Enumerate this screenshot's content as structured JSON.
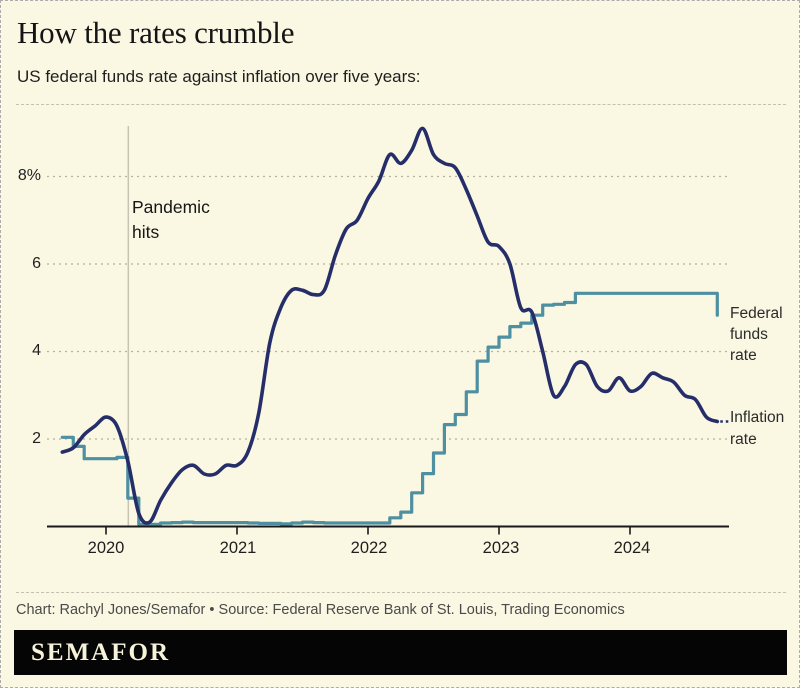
{
  "header": {
    "title": "How the rates crumble",
    "subtitle": "US federal funds rate against inflation over five years:"
  },
  "footer": {
    "credit": "Chart: Rachyl Jones/Semafor • Source: Federal Reserve Bank of St. Louis, Trading Economics",
    "logo": "SEMAFOR"
  },
  "colors": {
    "background": "#FAF7E3",
    "fed_funds_line": "#4E90A1",
    "inflation_line": "#262E6A",
    "gridline": "#B6B09E",
    "axis": "#1A1A1A",
    "annotation_line": "#C8C4B4",
    "logo_bar": "#050505"
  },
  "chart_data": {
    "type": "line",
    "title": "How the rates crumble",
    "subtitle": "US federal funds rate against inflation over five years:",
    "x_start_year": 2019.6667,
    "x_step_years": 0.0833333,
    "xlim": [
      2019.55,
      2024.85
    ],
    "ylim": [
      0,
      9.6
    ],
    "grid": "dashed-horizontal",
    "legend_position": "right-inline",
    "x_ticks": [
      {
        "year": 2020,
        "label": "2020"
      },
      {
        "year": 2021,
        "label": "2021"
      },
      {
        "year": 2022,
        "label": "2022"
      },
      {
        "year": 2023,
        "label": "2023"
      },
      {
        "year": 2024,
        "label": "2024"
      }
    ],
    "y_ticks": [
      {
        "value": 8,
        "label": "8%"
      },
      {
        "value": 6,
        "label": "6"
      },
      {
        "value": 4,
        "label": "4"
      },
      {
        "value": 2,
        "label": "2"
      }
    ],
    "annotation": {
      "label": "Pandemic hits",
      "x": 2020.17
    },
    "series": [
      {
        "name": "Federal funds rate",
        "style": "step",
        "color": "#4E90A1",
        "values": [
          2.04,
          1.83,
          1.55,
          1.55,
          1.55,
          1.58,
          0.65,
          0.05,
          0.05,
          0.08,
          0.09,
          0.1,
          0.09,
          0.09,
          0.09,
          0.09,
          0.09,
          0.08,
          0.07,
          0.07,
          0.06,
          0.08,
          0.1,
          0.09,
          0.08,
          0.08,
          0.08,
          0.08,
          0.08,
          0.08,
          0.2,
          0.33,
          0.77,
          1.21,
          1.68,
          2.33,
          2.56,
          3.08,
          3.78,
          4.1,
          4.33,
          4.57,
          4.65,
          4.83,
          5.06,
          5.08,
          5.12,
          5.33,
          5.33,
          5.33,
          5.33,
          5.33,
          5.33,
          5.33,
          5.33,
          5.33,
          5.33,
          5.33,
          5.33,
          5.33,
          4.83
        ]
      },
      {
        "name": "Inflation rate",
        "style": "smooth",
        "color": "#262E6A",
        "values": [
          1.7,
          1.8,
          2.1,
          2.3,
          2.5,
          2.3,
          1.5,
          0.3,
          0.1,
          0.6,
          1.0,
          1.3,
          1.4,
          1.2,
          1.2,
          1.4,
          1.4,
          1.7,
          2.6,
          4.2,
          5.0,
          5.4,
          5.4,
          5.3,
          5.4,
          6.2,
          6.8,
          7.0,
          7.5,
          7.9,
          8.5,
          8.3,
          8.6,
          9.1,
          8.5,
          8.3,
          8.2,
          7.7,
          7.1,
          6.5,
          6.4,
          6.0,
          5.0,
          4.9,
          4.0,
          3.0,
          3.2,
          3.7,
          3.7,
          3.2,
          3.1,
          3.4,
          3.1,
          3.2,
          3.5,
          3.4,
          3.3,
          3.0,
          2.9,
          2.5,
          2.4
        ]
      }
    ]
  }
}
